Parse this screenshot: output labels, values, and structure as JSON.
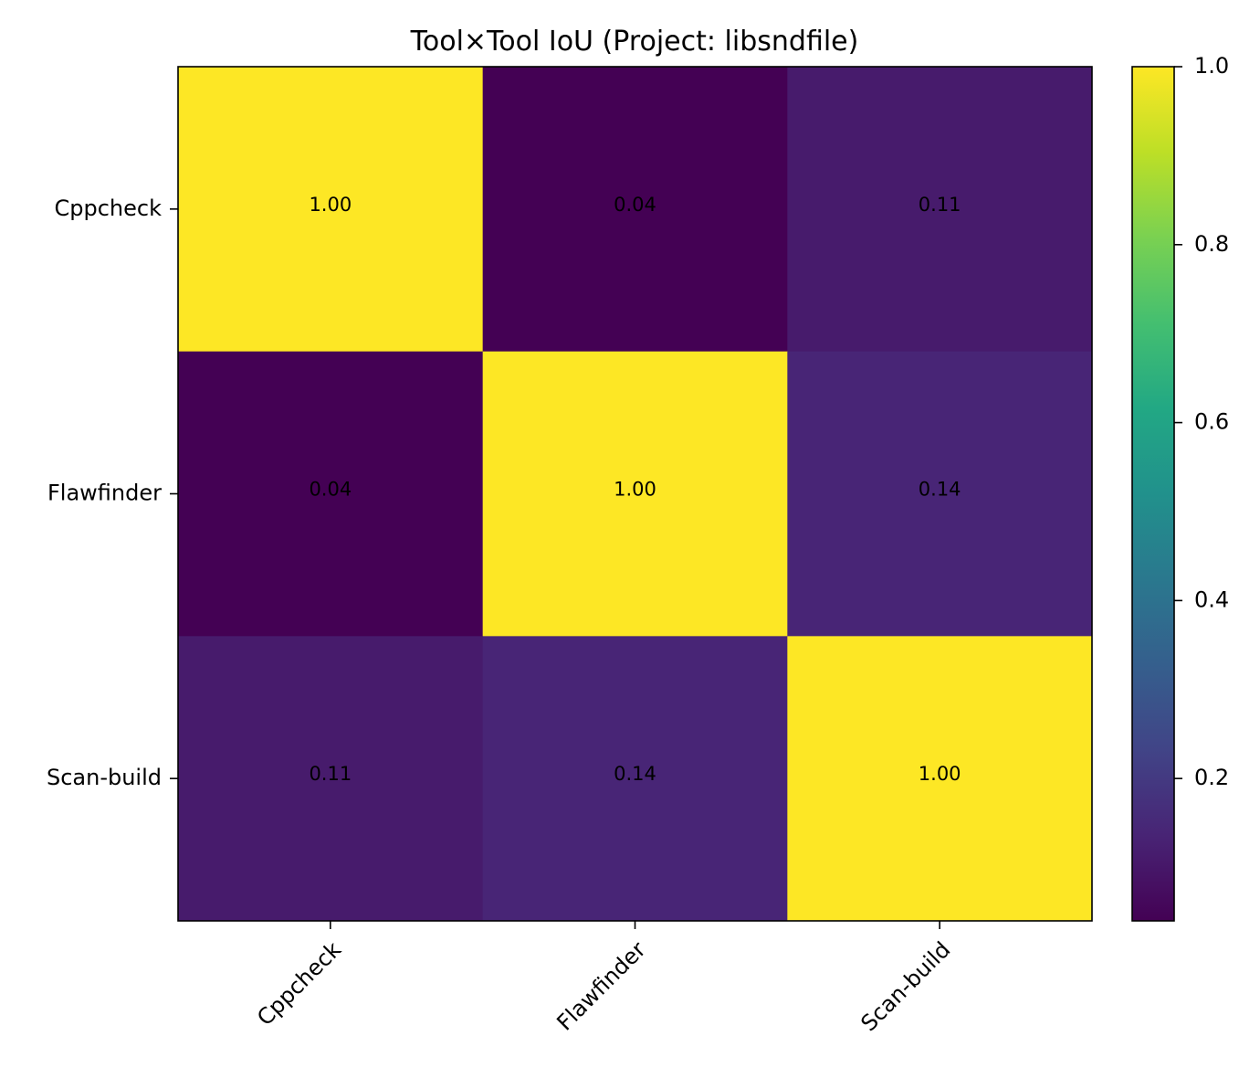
{
  "chart_data": {
    "type": "heatmap",
    "title": "Tool×Tool IoU (Project: libsndfile)",
    "xlabel": "",
    "ylabel": "",
    "x_categories": [
      "Cppcheck",
      "Flawfinder",
      "Scan-build"
    ],
    "y_categories": [
      "Cppcheck",
      "Flawfinder",
      "Scan-build"
    ],
    "values": [
      [
        1.0,
        0.04,
        0.11
      ],
      [
        0.04,
        1.0,
        0.14
      ],
      [
        0.11,
        0.14,
        1.0
      ]
    ],
    "cell_labels": [
      [
        "1.00",
        "0.04",
        "0.11"
      ],
      [
        "0.04",
        "1.00",
        "0.14"
      ],
      [
        "0.11",
        "0.14",
        "1.00"
      ]
    ],
    "colormap": "viridis",
    "colorbar": {
      "range": [
        0.04,
        1.0
      ],
      "ticks": [
        0.2,
        0.4,
        0.6,
        0.8,
        1.0
      ],
      "tick_labels": [
        "0.2",
        "0.4",
        "0.6",
        "0.8",
        "1.0"
      ]
    },
    "grid": false
  }
}
